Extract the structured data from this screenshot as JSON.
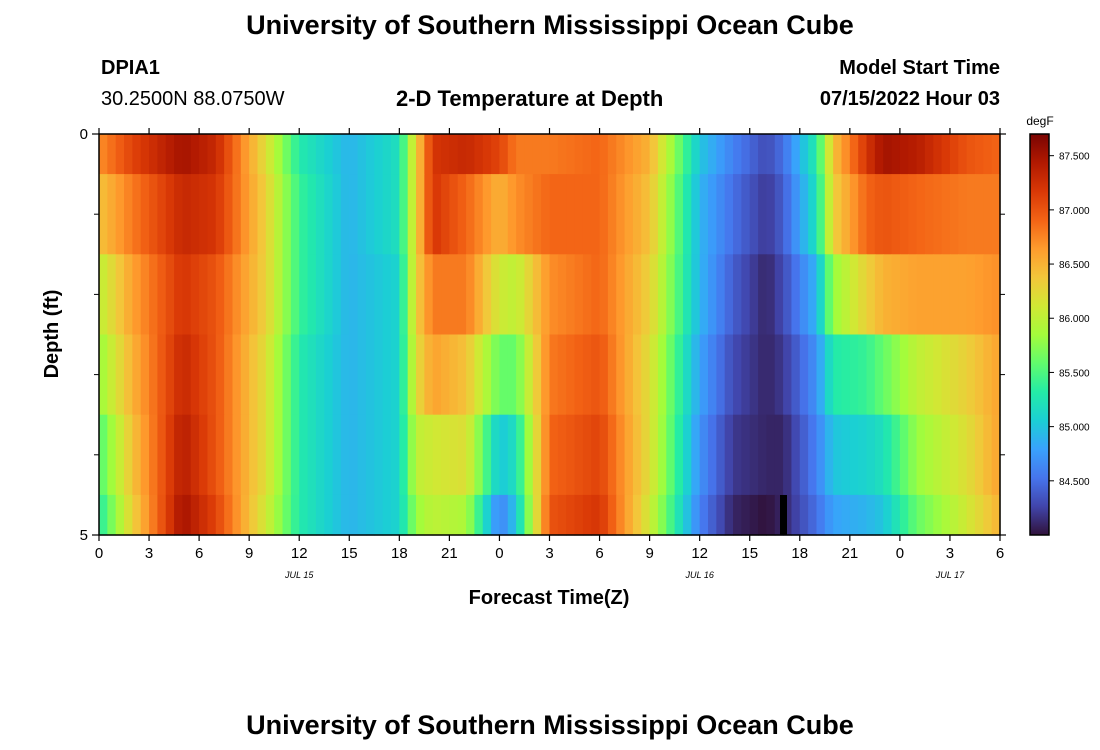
{
  "header": {
    "title": "University of Southern Mississippi Ocean Cube",
    "station_id": "DPIA1",
    "coords": "30.2500N  88.0750W",
    "plot_title": "2-D Temperature at Depth",
    "model_start_label": "Model Start Time",
    "model_start_value": "07/15/2022 Hour 03"
  },
  "footer": {
    "title": "University of Southern Mississippi Ocean Cube"
  },
  "chart_data": {
    "type": "heatmap",
    "xlabel": "Forecast Time(Z)",
    "ylabel": "Depth (ft)",
    "colorbar_unit": "degF",
    "x_range": [
      0,
      54
    ],
    "x_ticks": [
      0,
      3,
      6,
      9,
      12,
      15,
      18,
      21,
      24,
      27,
      30,
      33,
      36,
      39,
      42,
      45,
      48,
      51,
      54
    ],
    "x_tick_labels": [
      "0",
      "3",
      "6",
      "9",
      "12",
      "15",
      "18",
      "21",
      "0",
      "3",
      "6",
      "9",
      "12",
      "15",
      "18",
      "21",
      "0",
      "3",
      "6"
    ],
    "date_labels": [
      {
        "label": "JUL 15",
        "at_hour": 12
      },
      {
        "label": "JUL 16",
        "at_hour": 36
      },
      {
        "label": "JUL 17",
        "at_hour": 51
      }
    ],
    "y_range": [
      0,
      5
    ],
    "y_tick_labels": [
      {
        "value": 0,
        "label": "0"
      },
      {
        "value": 5,
        "label": "5"
      }
    ],
    "y_minor_ticks": [
      1,
      2,
      3,
      4
    ],
    "depth_layers": [
      0,
      1,
      2,
      3,
      4,
      5
    ],
    "colorbar_range": [
      84.0,
      87.7
    ],
    "colorbar_ticks": [
      84.5,
      85.0,
      85.5,
      86.0,
      86.5,
      87.0,
      87.5
    ],
    "colorbar_tick_labels": [
      "84.500",
      "85.000",
      "85.500",
      "86.000",
      "86.500",
      "87.000",
      "87.500"
    ],
    "colorscale": [
      "#30123b",
      "#4145ab",
      "#4675ed",
      "#39a2fc",
      "#1bcfd4",
      "#24eca6",
      "#61fc6c",
      "#a4fc3b",
      "#d1e834",
      "#f3c63a",
      "#fe9b2d",
      "#f36315",
      "#d93806",
      "#b11901",
      "#7a0402"
    ],
    "temperature_keyframes": {
      "hours": [
        0,
        2,
        5,
        7,
        10,
        12,
        15,
        18,
        19,
        20,
        22,
        24,
        25,
        27,
        30,
        33,
        36,
        38,
        40,
        41,
        43,
        44,
        46,
        47,
        49,
        52,
        54
      ],
      "layers": [
        [
          86.7,
          87.1,
          87.5,
          87.3,
          86.2,
          85.3,
          84.9,
          85.2,
          86.3,
          87.2,
          87.3,
          87.1,
          86.8,
          86.8,
          86.9,
          86.5,
          85.0,
          84.6,
          84.3,
          84.5,
          85.3,
          86.4,
          87.2,
          87.5,
          87.4,
          87.0,
          86.9
        ],
        [
          86.4,
          86.8,
          87.3,
          87.2,
          86.3,
          85.4,
          84.9,
          85.2,
          86.3,
          87.2,
          86.9,
          86.5,
          86.7,
          86.9,
          86.9,
          86.4,
          84.9,
          84.5,
          84.2,
          84.4,
          85.2,
          86.3,
          86.9,
          87.0,
          86.9,
          86.8,
          86.8
        ],
        [
          86.0,
          86.6,
          87.2,
          87.0,
          86.3,
          85.4,
          84.9,
          85.1,
          86.3,
          86.8,
          86.8,
          86.1,
          86.0,
          86.7,
          86.9,
          86.3,
          84.9,
          84.4,
          84.1,
          84.3,
          84.9,
          85.8,
          86.3,
          86.5,
          86.6,
          86.6,
          86.7
        ],
        [
          85.8,
          86.5,
          87.3,
          87.0,
          86.2,
          85.3,
          84.9,
          85.1,
          86.2,
          86.6,
          86.4,
          85.6,
          85.6,
          86.8,
          87.0,
          86.2,
          84.8,
          84.3,
          84.1,
          84.2,
          84.7,
          85.3,
          85.4,
          85.6,
          86.0,
          86.3,
          86.6
        ],
        [
          85.5,
          86.4,
          87.4,
          87.0,
          86.2,
          85.3,
          84.9,
          85.1,
          86.0,
          86.1,
          86.2,
          85.0,
          85.2,
          86.9,
          87.1,
          86.2,
          84.7,
          84.2,
          84.1,
          84.1,
          84.6,
          85.0,
          85.1,
          85.2,
          85.8,
          86.2,
          86.6
        ],
        [
          85.3,
          86.3,
          87.5,
          87.1,
          86.1,
          85.3,
          84.9,
          85.1,
          85.8,
          86.0,
          85.9,
          84.6,
          85.0,
          87.0,
          87.2,
          86.1,
          84.6,
          84.1,
          84.0,
          84.1,
          84.5,
          84.8,
          84.9,
          85.0,
          85.6,
          86.1,
          86.5
        ]
      ]
    }
  }
}
